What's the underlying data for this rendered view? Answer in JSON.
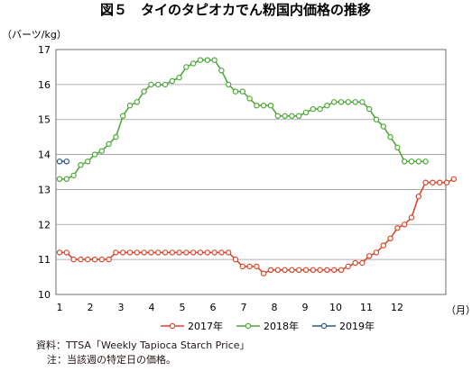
{
  "chart_data": {
    "type": "line",
    "title": "図５　タイのタピオカでん粉国内価格の推移",
    "ylabel": "（バーツ/kg）",
    "xlabel": "（月）",
    "ylim": [
      10,
      17
    ],
    "yticks": [
      "10",
      "11",
      "12",
      "13",
      "14",
      "15",
      "16",
      "17"
    ],
    "xticks": [
      "1",
      "2",
      "3",
      "4",
      "5",
      "6",
      "7",
      "8",
      "9",
      "10",
      "11",
      "12"
    ],
    "grid": true,
    "legend_position": "bottom",
    "series": [
      {
        "name": "2017年",
        "color": "#d9472b",
        "values": [
          11.2,
          11.2,
          11.0,
          11.0,
          11.0,
          11.0,
          11.0,
          11.0,
          11.2,
          11.2,
          11.2,
          11.2,
          11.2,
          11.2,
          11.2,
          11.2,
          11.2,
          11.2,
          11.2,
          11.2,
          11.2,
          11.2,
          11.2,
          11.2,
          11.2,
          11.0,
          10.8,
          10.8,
          10.8,
          10.6,
          10.7,
          10.7,
          10.7,
          10.7,
          10.7,
          10.7,
          10.7,
          10.7,
          10.7,
          10.7,
          10.7,
          10.8,
          10.9,
          10.9,
          11.1,
          11.2,
          11.4,
          11.6,
          11.9,
          12.0,
          12.2,
          12.8,
          13.2,
          13.2,
          13.2,
          13.2,
          13.3
        ]
      },
      {
        "name": "2018年",
        "color": "#4fa83a",
        "values": [
          13.3,
          13.3,
          13.4,
          13.7,
          13.8,
          14.0,
          14.1,
          14.3,
          14.5,
          15.1,
          15.4,
          15.5,
          15.8,
          16.0,
          16.0,
          16.0,
          16.1,
          16.2,
          16.5,
          16.6,
          16.7,
          16.7,
          16.7,
          16.4,
          16.0,
          15.8,
          15.8,
          15.6,
          15.4,
          15.4,
          15.4,
          15.1,
          15.1,
          15.1,
          15.1,
          15.2,
          15.3,
          15.3,
          15.4,
          15.5,
          15.5,
          15.5,
          15.5,
          15.5,
          15.3,
          15.0,
          14.8,
          14.5,
          14.2,
          13.8,
          13.8,
          13.8,
          13.8
        ]
      },
      {
        "name": "2019年",
        "color": "#2a5a8c",
        "values": [
          13.8,
          13.8
        ]
      }
    ]
  }
}
